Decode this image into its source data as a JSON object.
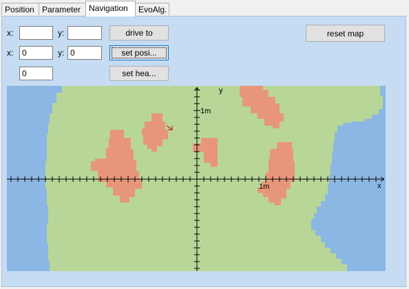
{
  "tabs": [
    {
      "label": "Position",
      "active": false
    },
    {
      "label": "Parameter",
      "active": false
    },
    {
      "label": "Navigation",
      "active": true
    },
    {
      "label": "EvoAlg.",
      "active": false
    }
  ],
  "form": {
    "row1": {
      "x_label": "x:",
      "x_value": "",
      "y_label": "y:",
      "y_value": "",
      "button": "drive to"
    },
    "row2": {
      "x_label": "x:",
      "x_value": "0",
      "y_label": "y:",
      "y_value": "0",
      "button": "set posi..."
    },
    "row3": {
      "value": "0",
      "button": "set hea..."
    },
    "reset_button": "reset map"
  },
  "map": {
    "y_axis_label": "y",
    "x_axis_label": "x",
    "y_tick_label": "1m",
    "x_tick_label": "1m",
    "colors": {
      "free": "#b8d698",
      "obstacle": "#e8967a",
      "unknown": "#8cb6e3",
      "axis": "#000000",
      "robot": "#cc0000"
    }
  }
}
